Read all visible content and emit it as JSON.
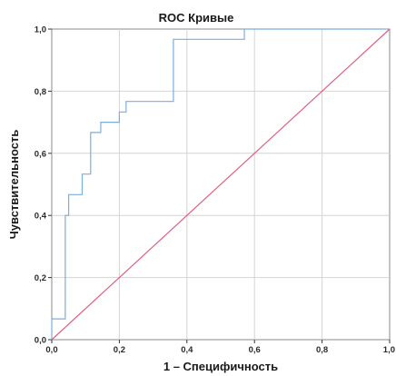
{
  "chart_data": {
    "type": "line",
    "title": "ROC Кривые",
    "xlabel": "1 – Специфичность",
    "ylabel": "Чувствительность",
    "xlim": [
      0,
      1
    ],
    "ylim": [
      0,
      1
    ],
    "grid": true,
    "x_ticks": [
      "0,0",
      "0,2",
      "0,4",
      "0,6",
      "0,8",
      "1,0"
    ],
    "y_ticks": [
      "0,0",
      "0,2",
      "0,4",
      "0,6",
      "0,8",
      "1,0"
    ],
    "tick_values": [
      0,
      0.2,
      0.4,
      0.6,
      0.8,
      1.0
    ],
    "series": [
      {
        "color": "#7aaedf",
        "step": true,
        "x": [
          0.0,
          0.0,
          0.03,
          0.03,
          0.04,
          0.04,
          0.045,
          0.045,
          0.05,
          0.05,
          0.09,
          0.09,
          0.115,
          0.115,
          0.145,
          0.145,
          0.2,
          0.2,
          0.22,
          0.22,
          0.36,
          0.36,
          0.57,
          0.57,
          1.0
        ],
        "y": [
          0.0,
          0.067,
          0.067,
          0.067,
          0.067,
          0.4,
          0.4,
          0.4,
          0.4,
          0.467,
          0.467,
          0.533,
          0.533,
          0.667,
          0.667,
          0.7,
          0.7,
          0.733,
          0.733,
          0.767,
          0.767,
          0.967,
          0.967,
          1.0,
          1.0
        ]
      },
      {
        "color": "#e0607e",
        "step": false,
        "x": [
          0,
          1
        ],
        "y": [
          0,
          1
        ]
      }
    ]
  }
}
